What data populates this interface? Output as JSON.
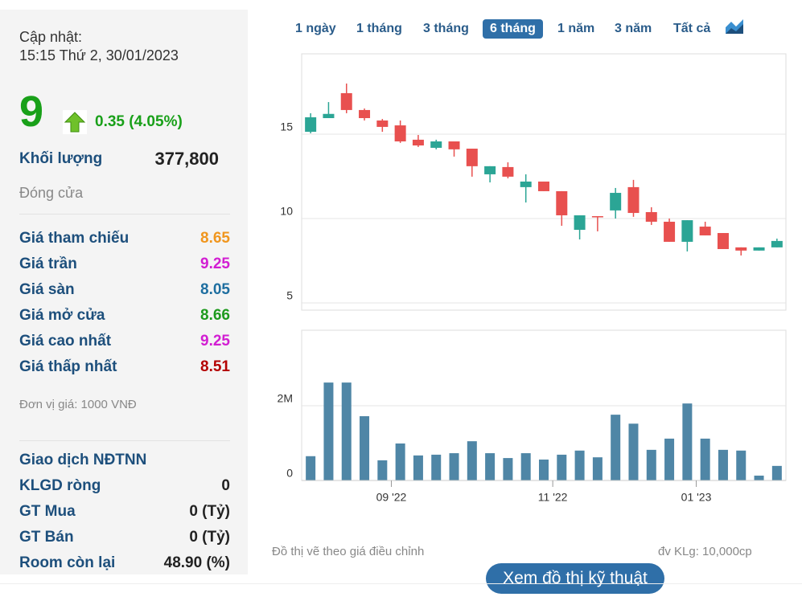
{
  "panel": {
    "update_label": "Cập nhật:",
    "update_time": "15:15 Thứ 2, 30/01/2023",
    "price": "9",
    "change": "0.35 (4.05%)",
    "volume_label": "Khối lượng",
    "volume_value": "377,800",
    "close_label": "Đóng cửa",
    "prices": [
      {
        "label": "Giá tham chiếu",
        "value": "8.65",
        "color": "#f0961e"
      },
      {
        "label": "Giá trần",
        "value": "9.25",
        "color": "#d21ed2"
      },
      {
        "label": "Giá sàn",
        "value": "8.05",
        "color": "#1e6ea0"
      },
      {
        "label": "Giá mở cửa",
        "value": "8.66",
        "color": "#1e9a1e"
      },
      {
        "label": "Giá cao nhất",
        "value": "9.25",
        "color": "#d21ed2"
      },
      {
        "label": "Giá thấp nhất",
        "value": "8.51",
        "color": "#b40000"
      }
    ],
    "unit_note": "Đơn vị giá: 1000 VNĐ",
    "foreign_title": "Giao dịch NĐTNN",
    "foreign": [
      {
        "label": "KLGD ròng",
        "value": "0"
      },
      {
        "label": "GT Mua",
        "value": "0 (Tỷ)"
      },
      {
        "label": "GT Bán",
        "value": "0 (Tỷ)"
      },
      {
        "label": "Room còn lại",
        "value": "48.90 (%)"
      }
    ]
  },
  "tabs": [
    "1 ngày",
    "1 tháng",
    "3 tháng",
    "6 tháng",
    "1 năm",
    "3 năm",
    "Tất cả"
  ],
  "selected_tab": "6 tháng",
  "chart_data": [
    {
      "type": "candlestick",
      "up_color": "#2ba595",
      "down_color": "#e8504f",
      "categories": [
        null,
        null,
        null,
        null,
        null,
        "09 '22",
        null,
        null,
        null,
        null,
        null,
        null,
        null,
        null,
        "11 '22",
        null,
        null,
        null,
        null,
        null,
        null,
        null,
        "01 '23",
        null,
        null,
        null,
        null
      ],
      "open": [
        15.14,
        15.95,
        17.43,
        16.43,
        15.81,
        15.52,
        14.67,
        14.19,
        14.57,
        14.14,
        12.62,
        13.05,
        11.86,
        12.19,
        11.62,
        9.33,
        10.14,
        10.48,
        11.86,
        10.38,
        9.81,
        8.62,
        9.52,
        9.14,
        8.29,
        8.1,
        8.29
      ],
      "high": [
        16.24,
        16.9,
        18.0,
        16.52,
        15.9,
        15.81,
        14.95,
        14.67,
        14.57,
        14.14,
        13.1,
        13.33,
        12.62,
        12.19,
        11.62,
        10.19,
        10.14,
        11.81,
        12.29,
        10.67,
        10.0,
        9.9,
        9.81,
        9.14,
        8.29,
        8.29,
        8.81
      ],
      "low": [
        15.05,
        15.95,
        16.24,
        15.81,
        15.14,
        14.48,
        14.24,
        14.1,
        13.67,
        12.48,
        12.14,
        12.38,
        10.95,
        11.62,
        9.57,
        8.76,
        9.24,
        10.0,
        10.1,
        9.62,
        8.62,
        8.05,
        9.0,
        8.19,
        7.81,
        8.1,
        8.29
      ],
      "close": [
        16.0,
        16.2,
        16.43,
        15.95,
        15.43,
        14.57,
        14.33,
        14.57,
        14.1,
        13.1,
        13.1,
        12.48,
        12.19,
        11.62,
        10.19,
        10.19,
        10.1,
        11.52,
        10.33,
        9.81,
        8.62,
        9.9,
        9.0,
        8.19,
        8.1,
        8.29,
        8.67
      ],
      "ylim": [
        4.57,
        19.76
      ],
      "yticks": [
        5,
        10,
        15
      ],
      "grid": true
    },
    {
      "type": "bar",
      "color": "#4f86a6",
      "values": [
        650000,
        2620000,
        2620000,
        1720000,
        540000,
        990000,
        670000,
        690000,
        730000,
        1050000,
        730000,
        600000,
        730000,
        560000,
        690000,
        800000,
        620000,
        1760000,
        1520000,
        820000,
        1120000,
        2060000,
        1120000,
        820000,
        800000,
        130000,
        390000
      ],
      "ylim": [
        0,
        4020000
      ],
      "yticks": [
        0,
        {
          "value": 2000000,
          "label": "2M"
        }
      ],
      "grid": true
    }
  ],
  "note_left": "Đồ thị vẽ theo giá điều chỉnh",
  "note_right": "đv KLg: 10,000cp",
  "button": "Xem đồ thị kỹ thuật"
}
